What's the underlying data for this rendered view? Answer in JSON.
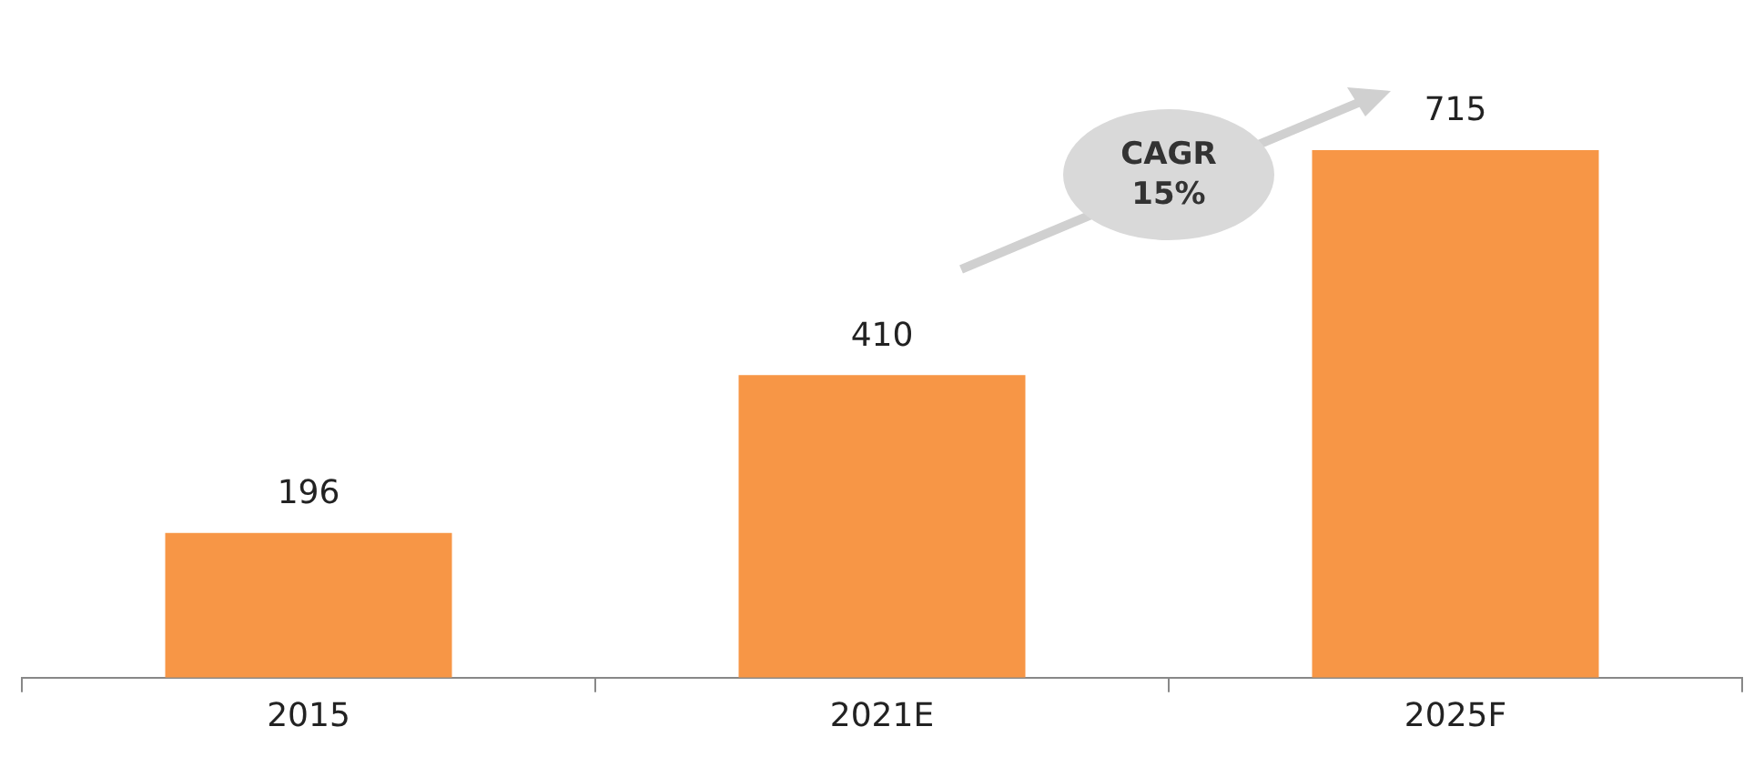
{
  "chart_data": {
    "type": "bar",
    "categories": [
      "2015",
      "2021E",
      "2025F"
    ],
    "values": [
      196,
      410,
      715
    ],
    "color": "#f79646",
    "data_labels": true,
    "grid": false,
    "legend": false,
    "annotations": [
      "CAGR 15%"
    ]
  }
}
